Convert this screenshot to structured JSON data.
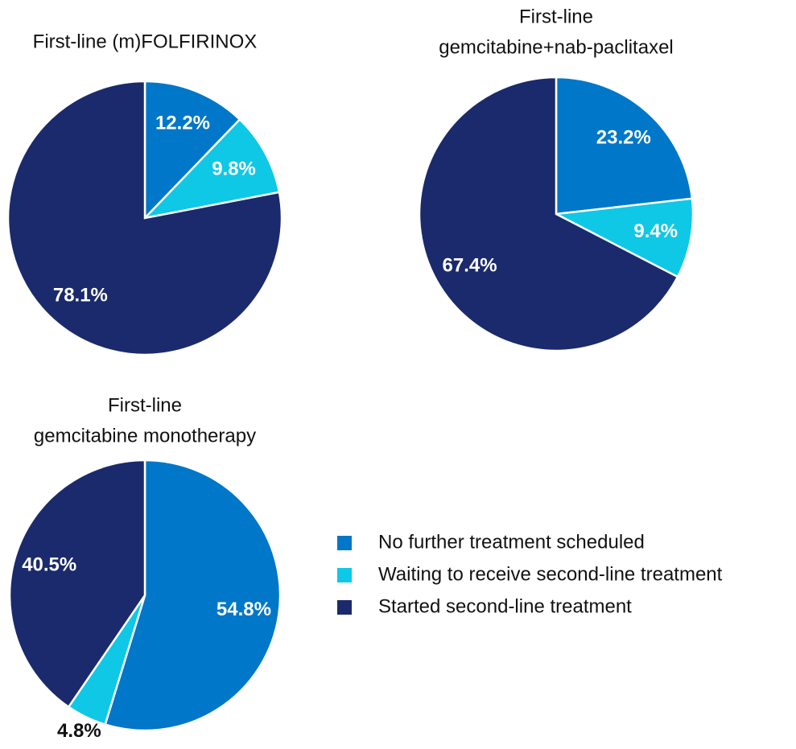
{
  "chart_data": [
    {
      "type": "pie",
      "title": [
        "First-line (m)FOLFIRINOX"
      ],
      "values": [
        12.2,
        9.8,
        78.1
      ],
      "value_labels": [
        "12.2%",
        "9.8%",
        "78.1%"
      ]
    },
    {
      "type": "pie",
      "title": [
        "First-line",
        "gemcitabine+nab-paclitaxel"
      ],
      "values": [
        23.2,
        9.4,
        67.4
      ],
      "value_labels": [
        "23.2%",
        "9.4%",
        "67.4%"
      ]
    },
    {
      "type": "pie",
      "title": [
        "First-line",
        "gemcitabine monotherapy"
      ],
      "values": [
        54.8,
        4.8,
        40.5
      ],
      "value_labels": [
        "54.8%",
        "4.8%",
        "40.5%"
      ]
    }
  ],
  "legend": {
    "labels": [
      "No further treatment scheduled",
      "Waiting to receive second-line treatment",
      "Started second-line treatment"
    ],
    "colors": [
      "#0077c8",
      "#0ec8e6",
      "#1a2a6c"
    ]
  }
}
